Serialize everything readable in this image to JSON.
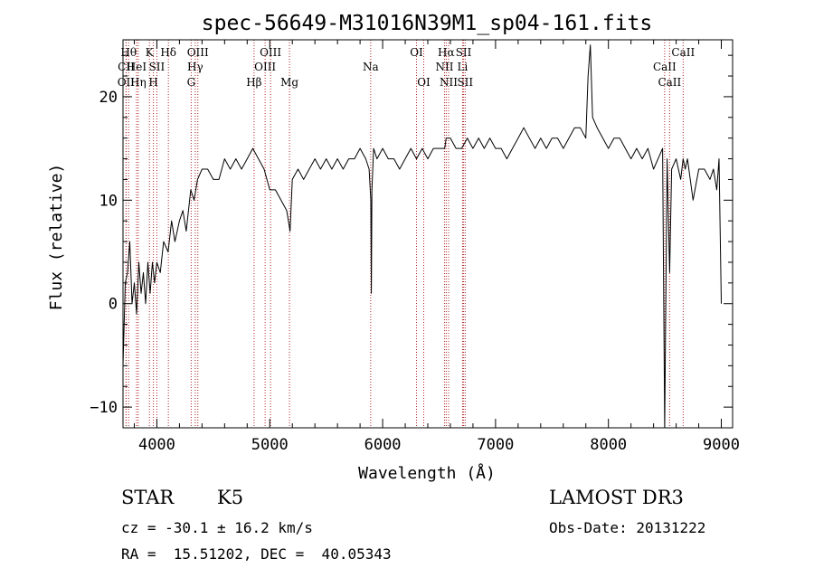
{
  "chart_data": {
    "type": "line",
    "title": "spec-56649-M31016N39M1_sp04-161.fits",
    "xlabel": "Wavelength (Å)",
    "ylabel": "Flux (relative)",
    "xlim": [
      3700,
      9100
    ],
    "ylim": [
      -12,
      25.5
    ],
    "xticks": [
      4000,
      5000,
      6000,
      7000,
      8000,
      9000
    ],
    "yticks": [
      -10,
      0,
      10,
      20
    ],
    "x": [
      3700,
      3720,
      3740,
      3760,
      3780,
      3800,
      3820,
      3840,
      3860,
      3880,
      3900,
      3920,
      3940,
      3960,
      3980,
      4000,
      4030,
      4060,
      4100,
      4130,
      4160,
      4200,
      4230,
      4260,
      4300,
      4330,
      4360,
      4400,
      4450,
      4500,
      4550,
      4600,
      4650,
      4700,
      4750,
      4800,
      4850,
      4900,
      4950,
      5000,
      5050,
      5100,
      5150,
      5180,
      5200,
      5250,
      5300,
      5350,
      5400,
      5450,
      5500,
      5550,
      5600,
      5650,
      5700,
      5750,
      5800,
      5850,
      5880,
      5895,
      5900,
      5905,
      5920,
      5950,
      6000,
      6050,
      6100,
      6150,
      6200,
      6250,
      6300,
      6350,
      6400,
      6450,
      6500,
      6550,
      6563,
      6600,
      6650,
      6700,
      6750,
      6800,
      6850,
      6900,
      6950,
      7000,
      7050,
      7100,
      7150,
      7200,
      7250,
      7300,
      7350,
      7400,
      7450,
      7500,
      7550,
      7600,
      7650,
      7700,
      7750,
      7800,
      7820,
      7840,
      7860,
      7900,
      7950,
      8000,
      8050,
      8100,
      8150,
      8200,
      8250,
      8300,
      8350,
      8400,
      8440,
      8480,
      8498,
      8520,
      8542,
      8560,
      8600,
      8620,
      8640,
      8662,
      8680,
      8700,
      8750,
      8800,
      8850,
      8900,
      8930,
      8960,
      8980,
      9000
    ],
    "y": [
      -6,
      2,
      3,
      6,
      0,
      2,
      -1,
      4,
      1,
      3,
      0,
      4,
      1,
      4,
      2,
      4,
      3,
      6,
      5,
      8,
      6,
      8,
      9,
      7,
      11,
      10,
      12,
      13,
      13,
      12,
      12,
      14,
      13,
      14,
      13,
      14,
      15,
      14,
      13,
      11,
      11,
      10,
      9,
      7,
      12,
      13,
      12,
      13,
      14,
      13,
      14,
      13,
      14,
      13,
      14,
      14,
      15,
      14,
      13,
      10,
      1,
      11,
      15,
      14,
      15,
      14,
      14,
      13,
      14,
      15,
      14,
      15,
      14,
      15,
      15,
      15,
      16,
      16,
      15,
      15,
      16,
      15,
      16,
      15,
      16,
      15,
      15,
      14,
      15,
      16,
      17,
      16,
      15,
      16,
      15,
      16,
      16,
      15,
      16,
      17,
      17,
      16,
      22,
      25,
      18,
      17,
      16,
      15,
      16,
      16,
      15,
      14,
      15,
      14,
      15,
      13,
      14,
      15,
      -12,
      14,
      3,
      13,
      14,
      13,
      12,
      14,
      13,
      14,
      10,
      13,
      13,
      12,
      13,
      11,
      14,
      0
    ],
    "lines": [
      {
        "label": "CII",
        "x": 3728,
        "row": 2
      },
      {
        "label": "OII",
        "x": 3727,
        "row": 3
      },
      {
        "label": "Hθ",
        "x": 3750,
        "row": 1
      },
      {
        "label": "Hη",
        "x": 3835,
        "row": 3
      },
      {
        "label": "HeI",
        "x": 3820,
        "row": 2
      },
      {
        "label": "K",
        "x": 3934,
        "row": 1
      },
      {
        "label": "H",
        "x": 3969,
        "row": 3
      },
      {
        "label": "SII",
        "x": 4000,
        "row": 2
      },
      {
        "label": "Hδ",
        "x": 4102,
        "row": 1
      },
      {
        "label": "OIII",
        "x": 4363,
        "row": 1
      },
      {
        "label": "Hγ",
        "x": 4340,
        "row": 2
      },
      {
        "label": "G",
        "x": 4304,
        "row": 3
      },
      {
        "label": "Hβ",
        "x": 4861,
        "row": 3
      },
      {
        "label": "OIII",
        "x": 5007,
        "row": 1
      },
      {
        "label": "OIII",
        "x": 4959,
        "row": 2
      },
      {
        "label": "Mg",
        "x": 5175,
        "row": 3
      },
      {
        "label": "Na",
        "x": 5894,
        "row": 2
      },
      {
        "label": "OI",
        "x": 6300,
        "row": 1
      },
      {
        "label": "OI",
        "x": 6364,
        "row": 3
      },
      {
        "label": "Hα",
        "x": 6563,
        "row": 1
      },
      {
        "label": "NII",
        "x": 6548,
        "row": 2
      },
      {
        "label": "NII",
        "x": 6584,
        "row": 3
      },
      {
        "label": "SII",
        "x": 6717,
        "row": 1
      },
      {
        "label": "Li",
        "x": 6708,
        "row": 2
      },
      {
        "label": "SII",
        "x": 6731,
        "row": 3
      },
      {
        "label": "CaII",
        "x": 8662,
        "row": 1
      },
      {
        "label": "CaII",
        "x": 8498,
        "row": 2
      },
      {
        "label": "CaII",
        "x": 8542,
        "row": 3
      }
    ]
  },
  "info": {
    "star_label": "STAR",
    "spec_type": "K5",
    "survey": "LAMOST DR3",
    "cz": "cz = -30.1 ± 16.2 km/s",
    "obs_date": "Obs-Date: 20131222",
    "coords": "RA =  15.51202, DEC =  40.05343"
  },
  "colors": {
    "spectrum": "#000000",
    "line_marker": "#b22222",
    "axes": "#000000"
  }
}
